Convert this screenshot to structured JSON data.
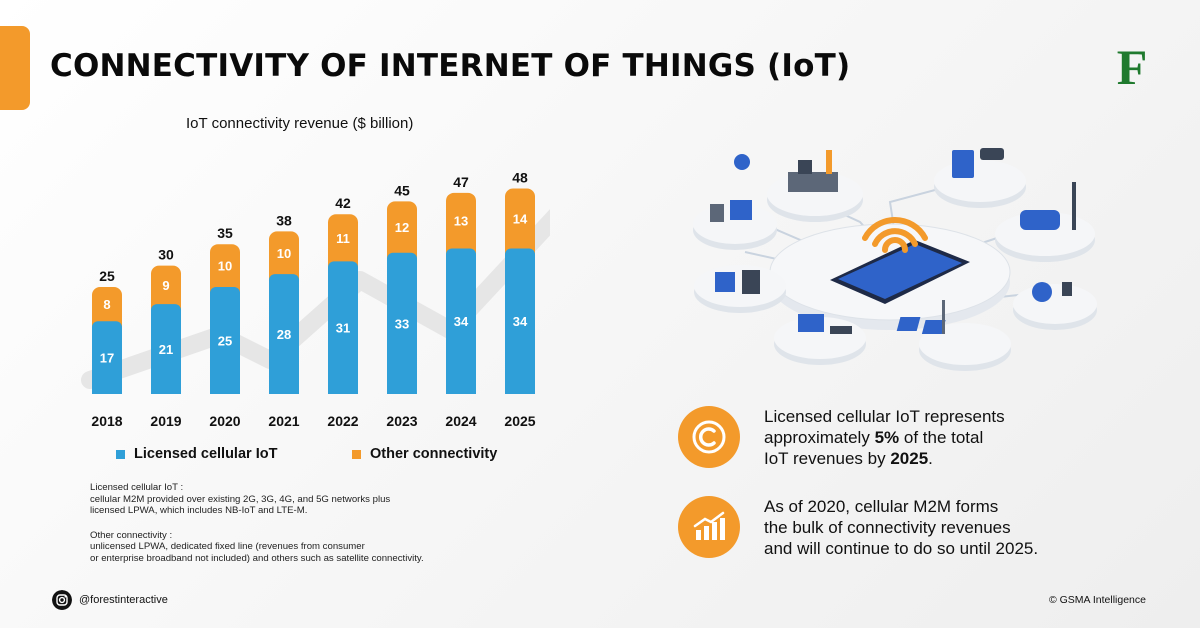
{
  "title": "CONNECTIVITY OF INTERNET OF THINGS (IoT)",
  "logo_letter": "F",
  "colors": {
    "accent": "#f39a2b",
    "licensed": "#2f9fd8",
    "other": "#f39a2b"
  },
  "chart_data": {
    "type": "bar",
    "stacked": true,
    "title": "IoT connectivity revenue ($ billion)",
    "categories": [
      "2018",
      "2019",
      "2020",
      "2021",
      "2022",
      "2023",
      "2024",
      "2025"
    ],
    "series": [
      {
        "name": "Licensed cellular IoT",
        "color": "#2f9fd8",
        "values": [
          17,
          21,
          25,
          28,
          31,
          33,
          34,
          34
        ]
      },
      {
        "name": "Other connectivity",
        "color": "#f39a2b",
        "values": [
          8,
          9,
          10,
          10,
          11,
          12,
          13,
          14
        ]
      }
    ],
    "totals": [
      25,
      30,
      35,
      38,
      42,
      45,
      47,
      48
    ],
    "ylim": [
      0,
      50
    ],
    "grid": false,
    "legend_position": "bottom"
  },
  "legend": {
    "licensed_label": "Licensed cellular IoT",
    "other_label": "Other connectivity"
  },
  "notes": {
    "licensed_heading": "Licensed cellular IoT :",
    "licensed_line1": "cellular M2M provided over existing 2G, 3G, 4G, and 5G networks plus",
    "licensed_line2": "licensed LPWA, which includes NB-IoT and LTE-M.",
    "other_heading": "Other connectivity :",
    "other_line1": "unlicensed LPWA, dedicated fixed line (revenues from consumer",
    "other_line2": "or enterprise broadband not included) and others such as satellite connectivity."
  },
  "facts": [
    {
      "icon": "copyright-icon",
      "line1": "Licensed cellular IoT represents",
      "line2_pre": "approximately ",
      "line2_bold": "5%",
      "line2_post": " of the total",
      "line3_pre": "IoT revenues by ",
      "line3_bold": "2025",
      "line3_post": "."
    },
    {
      "icon": "growth-chart-icon",
      "line1": "As of 2020, cellular M2M forms",
      "line2": "the bulk of connectivity revenues",
      "line3": "and will continue to do so until 2025."
    }
  ],
  "footer": {
    "social_icon": "instagram-icon",
    "handle": "@forestinteractive",
    "source": "© GSMA Intelligence"
  }
}
